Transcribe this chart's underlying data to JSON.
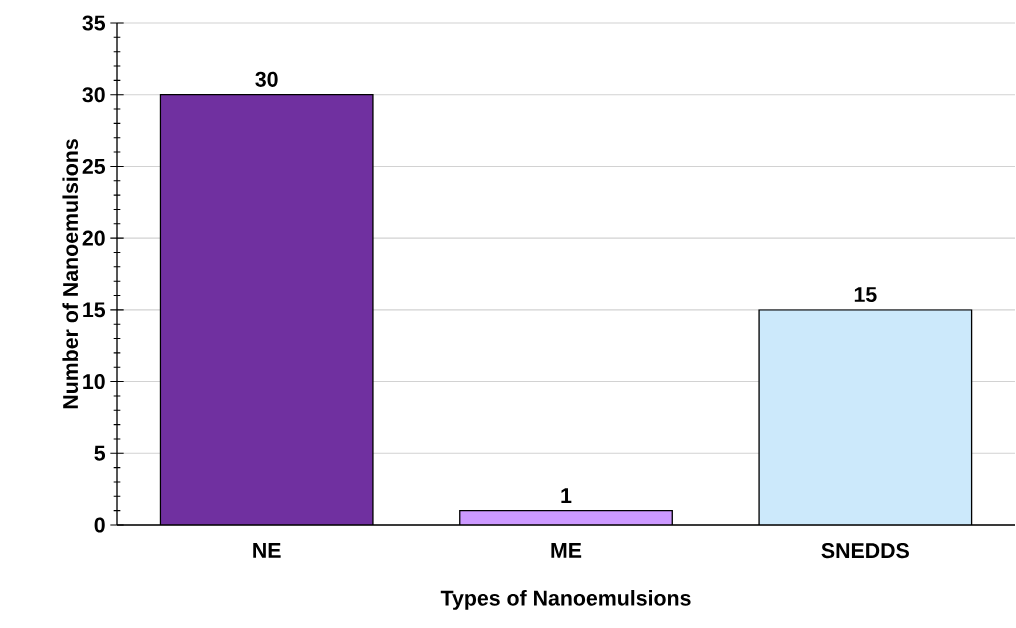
{
  "chart_data": {
    "type": "bar",
    "categories": [
      "NE",
      "ME",
      "SNEDDS"
    ],
    "values": [
      30,
      1,
      15
    ],
    "colors": [
      "#7030a0",
      "#cc99ff",
      "#cce9fb"
    ],
    "xlabel": "Types of Nanoemulsions",
    "ylabel": "Number of Nanoemulsions",
    "ylim": [
      0,
      35
    ],
    "yticks": [
      0,
      5,
      10,
      15,
      20,
      25,
      30,
      35
    ],
    "grid": "y",
    "data_labels": true
  }
}
